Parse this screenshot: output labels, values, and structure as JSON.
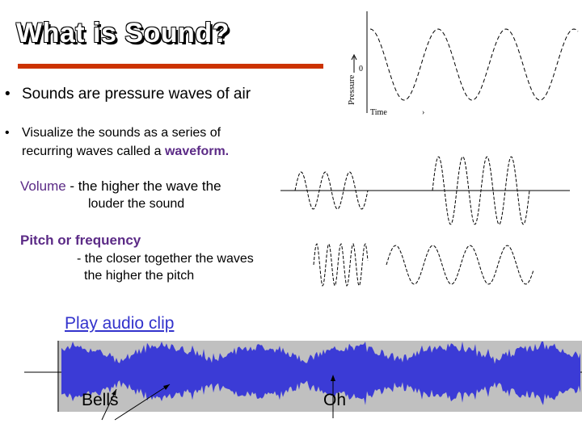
{
  "title": "What is Sound?",
  "bullets": {
    "b1": "Sounds are pressure waves of air",
    "b2_line1": "Visualize the sounds as a series of",
    "b2_line2_prefix": "recurring waves called a ",
    "b2_line2_keyword": "waveform."
  },
  "volume": {
    "keyword": "Volume",
    "line1_rest": " - the higher the wave the",
    "line2": "louder the sound"
  },
  "pitch": {
    "heading": "Pitch or frequency",
    "line2": "- the closer together the waves",
    "line3": "the higher the pitch"
  },
  "link": {
    "play": "Play audio clip"
  },
  "labels": {
    "bells": "Bells",
    "oh": "Oh"
  },
  "diagram": {
    "ylabel": "Pressure",
    "xlabel": "Time",
    "zero": "0"
  },
  "colors": {
    "accent_rule": "#cc3300",
    "keyword": "#5b2a86",
    "link": "#3333cc",
    "waveform": "#3b3bd6",
    "waveform_bg": "#c0c0c0"
  }
}
